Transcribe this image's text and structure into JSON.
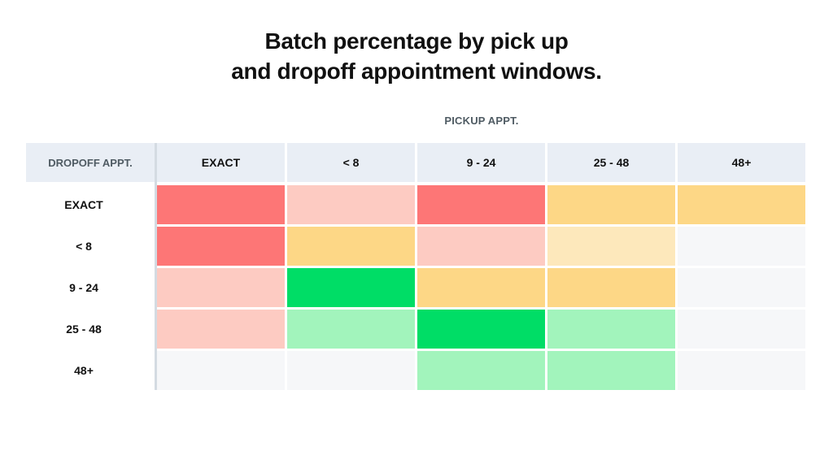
{
  "title": {
    "line1": "Batch percentage by pick up",
    "line2": "and dropoff appointment windows."
  },
  "chart_data": {
    "type": "heatmap",
    "x_axis_label": "PICKUP APPT.",
    "y_axis_label": "DROPOFF APPT.",
    "columns": [
      "EXACT",
      "< 8",
      "9 - 24",
      "25 - 48",
      "48+"
    ],
    "rows": [
      "EXACT",
      "< 8",
      "9 - 24",
      "25 - 48",
      "48+"
    ],
    "levels": {
      "high_red": "#fd7676",
      "light_red": "#fdcbc2",
      "amber": "#fdd786",
      "light_amber": "#fde8bb",
      "bright_green": "#00dd66",
      "light_green": "#a2f4bc",
      "none": "#f6f7f9"
    },
    "cells": [
      [
        "high_red",
        "light_red",
        "high_red",
        "amber",
        "amber"
      ],
      [
        "high_red",
        "amber",
        "light_red",
        "light_amber",
        "none"
      ],
      [
        "light_red",
        "bright_green",
        "amber",
        "amber",
        "none"
      ],
      [
        "light_red",
        "light_green",
        "bright_green",
        "light_green",
        "none"
      ],
      [
        "none",
        "none",
        "light_green",
        "light_green",
        "none"
      ]
    ],
    "header_bg": "#e9eef5",
    "axis_line_color": "#d4dbe2",
    "y_label_color": "#4f5b63"
  }
}
